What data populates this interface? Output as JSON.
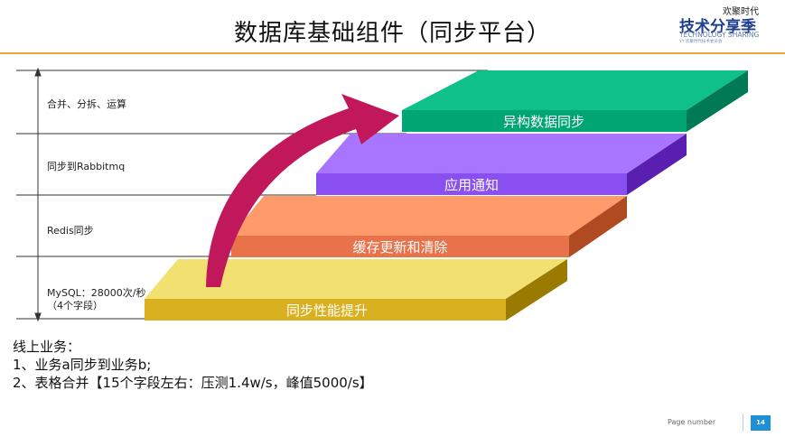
{
  "header": {
    "title": "数据库基础组件（同步平台）",
    "logo": {
      "top": "欢聚时代",
      "main": "技术分享季",
      "sub": "TECHNOLOGY SHARING",
      "tiny": "YY 欢聚时代技术委员会"
    }
  },
  "levels": [
    {
      "label": "合并、分拆、运算"
    },
    {
      "label": "同步到Rabbitmq"
    },
    {
      "label": "Redis同步"
    },
    {
      "label": "MySQL：28000次/秒\n（4个字段）"
    }
  ],
  "steps": [
    {
      "label": "异构数据同步",
      "top_color": "#10c08a",
      "front_color": "#00a574",
      "side_color": "#007a55"
    },
    {
      "label": "应用通知",
      "top_color": "#a875ff",
      "front_color": "#8a4ff0",
      "side_color": "#5a1fb0"
    },
    {
      "label": "缓存更新和清除",
      "top_color": "#ff9a6a",
      "front_color": "#e8724a",
      "side_color": "#b04a20"
    },
    {
      "label": "同步性能提升",
      "top_color": "#f2e070",
      "front_color": "#d8b020",
      "side_color": "#9a7a00"
    }
  ],
  "arrow_color": "#c0185a",
  "notes": [
    "线上业务：",
    "1、业务a同步到业务b;",
    "2、表格合并【15个字段左右：压测1.4w/s，峰值5000/s】"
  ],
  "footer": {
    "page_label": "Page number",
    "page_number": "14"
  }
}
